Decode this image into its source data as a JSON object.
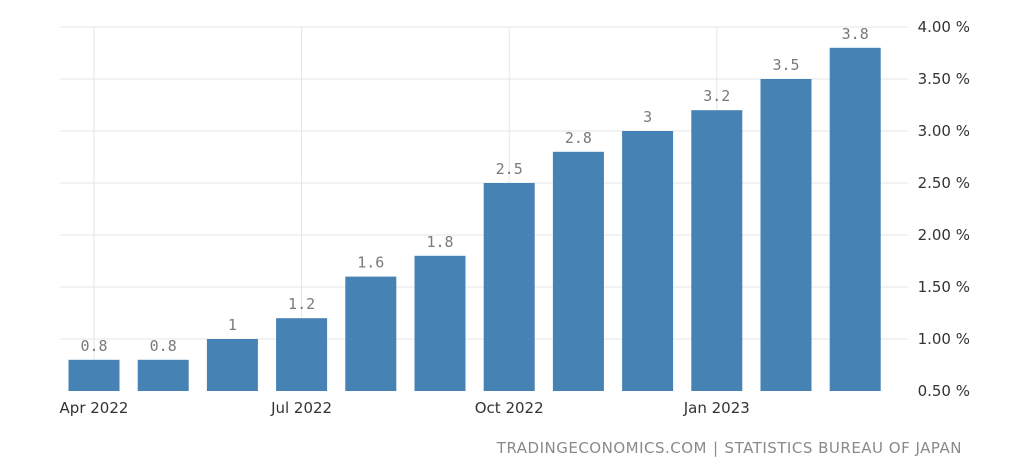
{
  "chart_data": {
    "type": "bar",
    "categories": [
      "Apr 2022",
      "May 2022",
      "Jun 2022",
      "Jul 2022",
      "Aug 2022",
      "Sep 2022",
      "Oct 2022",
      "Nov 2022",
      "Dec 2022",
      "Jan 2023",
      "Feb 2023",
      "Mar 2023"
    ],
    "values": [
      0.8,
      0.8,
      1,
      1.2,
      1.6,
      1.8,
      2.5,
      2.8,
      3,
      3.2,
      3.5,
      3.8
    ],
    "value_labels": [
      "0.8",
      "0.8",
      "1",
      "1.2",
      "1.6",
      "1.8",
      "2.5",
      "2.8",
      "3",
      "3.2",
      "3.5",
      "3.8"
    ],
    "x_tick_labels": [
      {
        "category": "Apr 2022",
        "label": "Apr 2022"
      },
      {
        "category": "Jul 2022",
        "label": "Jul 2022"
      },
      {
        "category": "Oct 2022",
        "label": "Oct 2022"
      },
      {
        "category": "Jan 2023",
        "label": "Jan 2023"
      }
    ],
    "y_ticks": [
      0.5,
      1.0,
      1.5,
      2.0,
      2.5,
      3.0,
      3.5,
      4.0
    ],
    "y_tick_labels": [
      "0.50 %",
      "1.00 %",
      "1.50 %",
      "2.00 %",
      "2.50 %",
      "3.00 %",
      "3.50 %",
      "4.00 %"
    ],
    "ylim": [
      0.5,
      4.0
    ],
    "y_axis_side": "right",
    "grid": true,
    "bar_color": "#4682b4",
    "title": "",
    "xlabel": "",
    "ylabel": ""
  },
  "source": {
    "site": "TRADINGECONOMICS.COM",
    "separator": "|",
    "org": "STATISTICS BUREAU OF JAPAN"
  }
}
